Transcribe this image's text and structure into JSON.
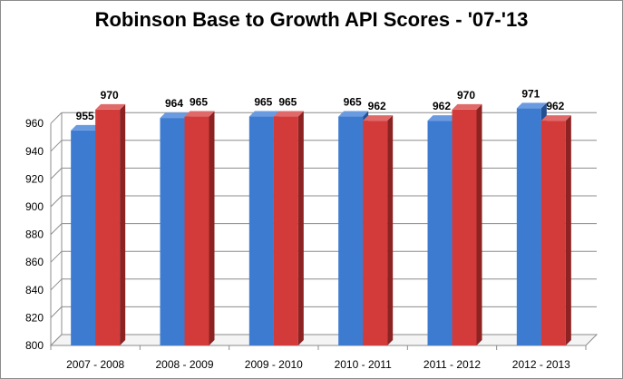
{
  "chart_data": {
    "type": "bar",
    "title": "Robinson Base to Growth API Scores - '07-'13",
    "categories": [
      "2007  -  2008",
      "2008  -  2009",
      "2009  -  2010",
      "2010  -  2011",
      "2011  -  2012",
      "2012  -  2013"
    ],
    "series": [
      {
        "values": [
          955,
          964,
          965,
          965,
          962,
          971
        ]
      },
      {
        "values": [
          970,
          965,
          965,
          962,
          970,
          962
        ]
      }
    ],
    "xlabel": "",
    "ylabel": "",
    "ylim": [
      800,
      970
    ],
    "yticks": [
      800,
      820,
      840,
      860,
      880,
      900,
      920,
      940,
      960
    ],
    "grid": true,
    "legend": "none",
    "colors": {
      "series_1_front": "#3d7bd1",
      "series_1_side": "#244f90",
      "series_1_top": "#6a9be0",
      "series_2_front": "#d33b3b",
      "series_2_side": "#8c2222",
      "series_2_top": "#e06a6a",
      "grid": "#8c8c8c"
    }
  }
}
